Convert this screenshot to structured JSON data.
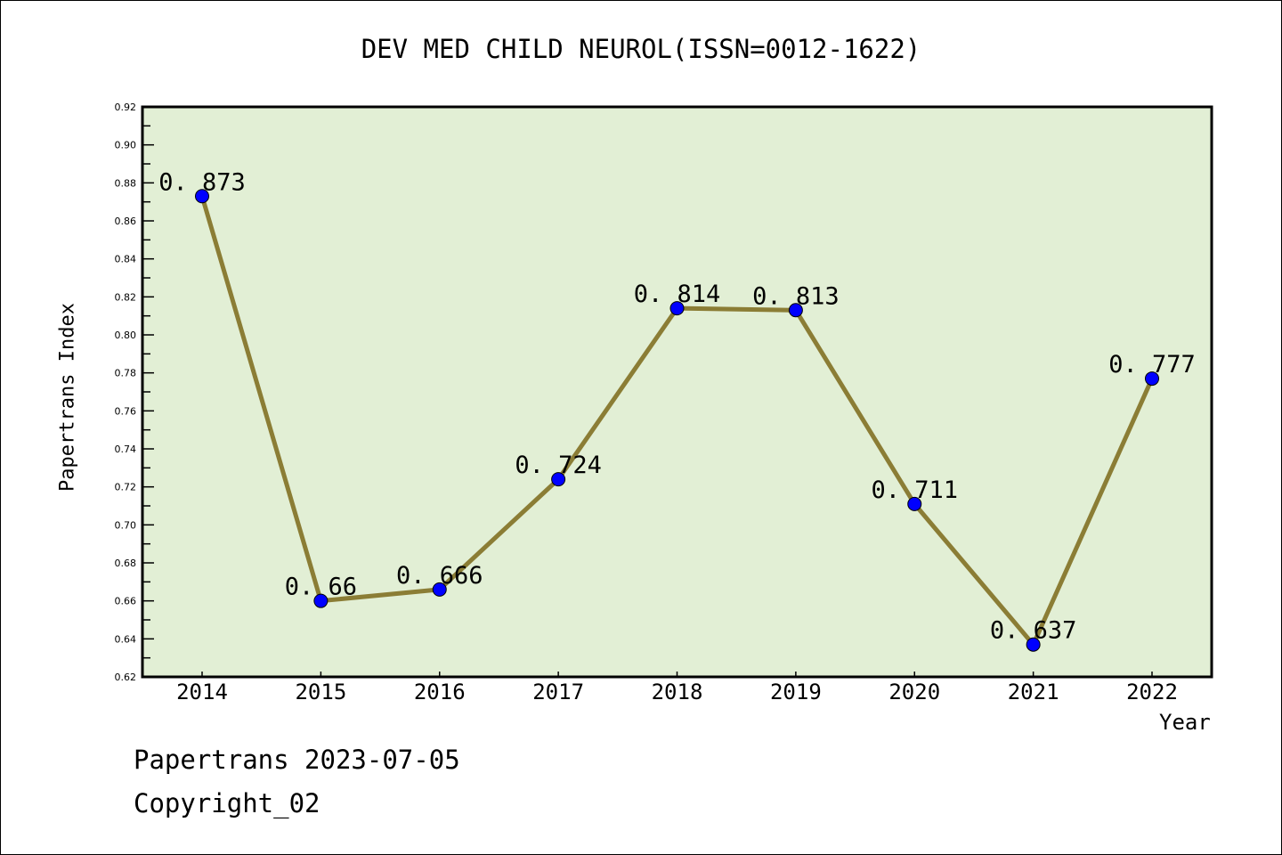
{
  "chart_data": {
    "type": "line",
    "title": "DEV MED CHILD NEUROL(ISSN=0012-1622)",
    "xlabel": "Year",
    "ylabel": "Papertrans Index",
    "categories": [
      "2014",
      "2015",
      "2016",
      "2017",
      "2018",
      "2019",
      "2020",
      "2021",
      "2022"
    ],
    "values": [
      0.873,
      0.66,
      0.666,
      0.724,
      0.814,
      0.813,
      0.711,
      0.637,
      0.777
    ],
    "data_labels": [
      "0.873",
      "0.66",
      "0.666",
      "0.724",
      "0.814",
      "0.813",
      "0.711",
      "0.637",
      "0.777"
    ],
    "ylim": [
      0.62,
      0.92
    ],
    "yticks": [
      "0.62",
      "0.64",
      "0.66",
      "0.68",
      "0.70",
      "0.72",
      "0.74",
      "0.76",
      "0.78",
      "0.80",
      "0.82",
      "0.84",
      "0.86",
      "0.88",
      "0.90",
      "0.92"
    ],
    "grid": false,
    "colors": {
      "line": "#8b7d35",
      "marker": "#0000ff",
      "plot_bg": "#e2efd5"
    }
  },
  "footer": {
    "date_line": "Papertrans 2023-07-05",
    "copyright": "Copyright_02"
  }
}
